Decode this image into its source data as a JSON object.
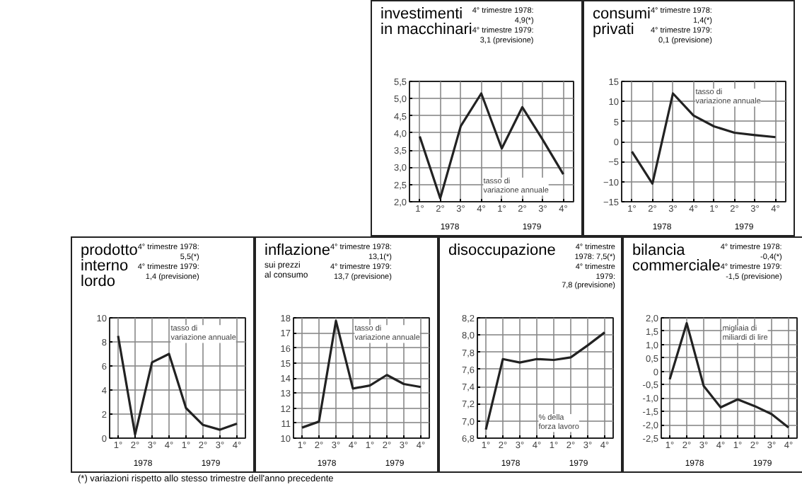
{
  "chart_data": [
    {
      "type": "line",
      "title": "investimenti\nin macchinari",
      "categories": [
        "1°",
        "2°",
        "3°",
        "4°",
        "1°",
        "2°",
        "3°",
        "4°"
      ],
      "values": [
        3.9,
        2.1,
        4.2,
        5.15,
        3.55,
        4.75,
        3.8,
        2.8
      ],
      "color": "#222222",
      "ylim": [
        2.0,
        5.5
      ],
      "yticks": [
        {
          "value": 2.0,
          "label": "2,0"
        },
        {
          "value": 2.5,
          "label": "2,5"
        },
        {
          "value": 3.0,
          "label": "3,0"
        },
        {
          "value": 3.5,
          "label": "3,5"
        },
        {
          "value": 4.0,
          "label": "4,0"
        },
        {
          "value": 4.5,
          "label": "4,5"
        },
        {
          "value": 5.0,
          "label": "5,0"
        },
        {
          "value": 5.5,
          "label": "5,5"
        }
      ],
      "grid": true,
      "annotations": [
        "4° trimestre 1978:\n4,9(*)",
        "4° trimestre 1979:\n3,1 (previsione)",
        "tasso di\nvariazione annuale",
        "1978",
        "1979"
      ]
    },
    {
      "type": "line",
      "title": "consumi\nprivati",
      "categories": [
        "1°",
        "2°",
        "3°",
        "4°",
        "1°",
        "2°",
        "3°",
        "4°"
      ],
      "values": [
        -2.5,
        -10.5,
        12,
        6.5,
        3.8,
        2.2,
        1.6,
        1.1
      ],
      "color": "#222222",
      "ylim": [
        -15,
        15
      ],
      "yticks": [
        -15,
        -10,
        -5,
        0,
        5,
        10,
        15
      ],
      "grid": true,
      "annotations": [
        "4° trimestre 1978:\n1,4(*)",
        "4° trimestre 1979:\n0,1 (previsione)",
        "tasso di\nvariazione annuale",
        "1978",
        "1979"
      ]
    },
    {
      "type": "line",
      "title": "prodotto\ninterno\nlordo",
      "categories": [
        "1°",
        "2°",
        "3°",
        "4°",
        "1°",
        "2°",
        "3°",
        "4°"
      ],
      "values": [
        8.5,
        0.3,
        6.3,
        7.0,
        2.5,
        1.1,
        0.7,
        1.2
      ],
      "color": "#222222",
      "ylim": [
        0,
        10
      ],
      "yticks": [
        0,
        2,
        4,
        6,
        8,
        10
      ],
      "grid": true,
      "annotations": [
        "4° trimestre 1978:\n5,5(*)",
        "4° trimestre 1979:\n1,4 (previsione)",
        "tasso di\nvariazione annuale",
        "1978",
        "1979"
      ]
    },
    {
      "type": "line",
      "title": "inflazione",
      "subtitle": "sui prezzi\nal consumo",
      "categories": [
        "1°",
        "2°",
        "3°",
        "4°",
        "1°",
        "2°",
        "3°",
        "4°"
      ],
      "values": [
        10.7,
        11.1,
        17.8,
        13.3,
        13.5,
        14.2,
        13.6,
        13.4
      ],
      "color": "#222222",
      "ylim": [
        10,
        18
      ],
      "yticks": [
        10,
        11,
        12,
        13,
        14,
        15,
        16,
        17,
        18
      ],
      "grid": true,
      "annotations": [
        "4° trimestre 1978:\n13,1(*)",
        "4° trimestre 1979:\n13,7 (previsione)",
        "tasso di\nvariazione annuale",
        "1978",
        "1979"
      ]
    },
    {
      "type": "line",
      "title": "disoccupazione",
      "categories": [
        "1°",
        "2°",
        "3°",
        "4°",
        "1°",
        "2°",
        "3°",
        "4°"
      ],
      "values": [
        6.9,
        7.72,
        7.68,
        7.72,
        7.71,
        7.74,
        7.88,
        8.03
      ],
      "color": "#222222",
      "ylim": [
        6.8,
        8.2
      ],
      "yticks": [
        {
          "value": 6.8,
          "label": "6,8"
        },
        {
          "value": 7.0,
          "label": "7,0"
        },
        {
          "value": 7.2,
          "label": "7,2"
        },
        {
          "value": 7.4,
          "label": "7,4"
        },
        {
          "value": 7.6,
          "label": "7,6"
        },
        {
          "value": 7.8,
          "label": "7,8"
        },
        {
          "value": 8.0,
          "label": "8,0"
        },
        {
          "value": 8.2,
          "label": "8,2"
        }
      ],
      "grid": true,
      "annotations": [
        "4° trimestre 1978: 7,5(*)",
        "4° trimestre 1979:\n7,8 (previsione)",
        "% della\nforza lavoro",
        "1978",
        "1979"
      ]
    },
    {
      "type": "line",
      "title": "bilancia\ncommerciale",
      "categories": [
        "1°",
        "2°",
        "3°",
        "4°",
        "1°",
        "2°",
        "3°",
        "4°"
      ],
      "values": [
        -0.3,
        1.8,
        -0.55,
        -1.35,
        -1.05,
        -1.3,
        -1.6,
        -2.1
      ],
      "color": "#222222",
      "ylim": [
        -2.5,
        2.0
      ],
      "yticks": [
        {
          "value": -2.5,
          "label": "-2,5"
        },
        {
          "value": -2.0,
          "label": "-2,0"
        },
        {
          "value": -1.5,
          "label": "-1,5"
        },
        {
          "value": -1.0,
          "label": "-1,0"
        },
        {
          "value": -0.5,
          "label": "-0,5"
        },
        {
          "value": 0,
          "label": "0"
        },
        {
          "value": 0.5,
          "label": "0,5"
        },
        {
          "value": 1.0,
          "label": "1,0"
        },
        {
          "value": 1.5,
          "label": "1,5"
        },
        {
          "value": 2.0,
          "label": "2,0"
        }
      ],
      "grid": true,
      "annotations": [
        "4° trimestre 1978:\n-0,4(*)",
        "4° trimestre 1979:\n-1,5 (previsione)",
        "migliaia di\nmiliardi di lire",
        "1978",
        "1979"
      ]
    },
    {
      "type": "other",
      "annotations": [
        "(*) variazioni rispetto allo stesso trimestre dell'anno precedente"
      ]
    }
  ]
}
